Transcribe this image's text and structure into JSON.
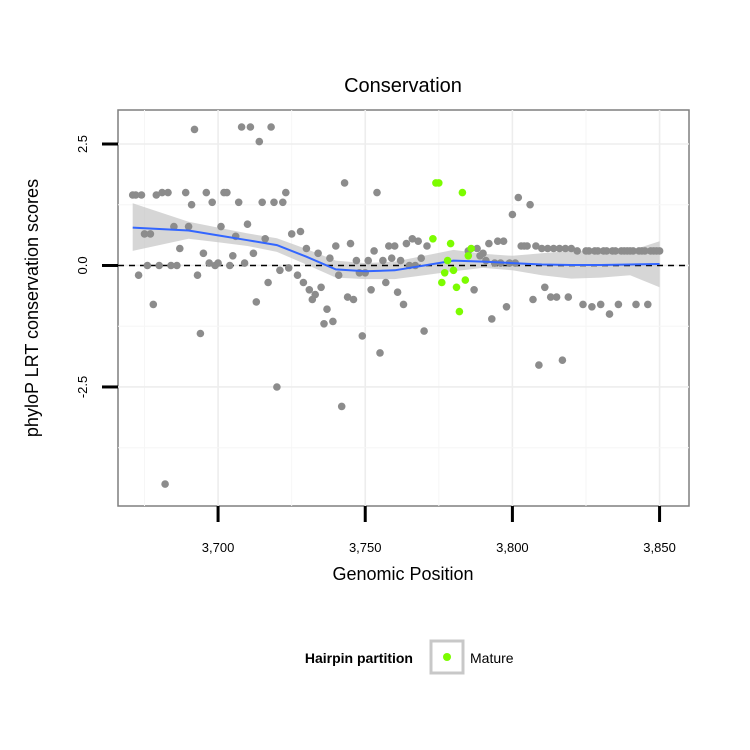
{
  "chart_data": {
    "type": "scatter",
    "title": "Conservation",
    "xlabel": "Genomic Position",
    "ylabel": "phyloP LRT conservation scores",
    "xlim": [
      3666,
      3860
    ],
    "ylim": [
      -4.95,
      3.2
    ],
    "x_ticks": [
      {
        "value": 3700,
        "label": "3,700"
      },
      {
        "value": 3750,
        "label": "3,750"
      },
      {
        "value": 3800,
        "label": "3,800"
      },
      {
        "value": 3850,
        "label": "3,850"
      }
    ],
    "y_ticks": [
      {
        "value": -2.5,
        "label": "-2.5"
      },
      {
        "value": 0.0,
        "label": "0.0"
      },
      {
        "value": 2.5,
        "label": "2.5"
      }
    ],
    "reference_line": {
      "y": 0.0,
      "style": "dashed"
    },
    "legend": {
      "title": "Hairpin partition",
      "entries": [
        {
          "label": "Mature",
          "color": "#7cfc00"
        }
      ],
      "position": "bottom"
    },
    "colors": {
      "other": "#8c8c8c",
      "mature": "#7cfc00",
      "smooth": "#3366ff",
      "band": "#c4c4c4"
    },
    "series": [
      {
        "name": "Other",
        "points": [
          [
            3671,
            1.45
          ],
          [
            3672,
            1.45
          ],
          [
            3673,
            -0.2
          ],
          [
            3674,
            1.45
          ],
          [
            3675,
            0.65
          ],
          [
            3676,
            0.0
          ],
          [
            3677,
            0.65
          ],
          [
            3678,
            -0.8
          ],
          [
            3679,
            1.45
          ],
          [
            3680,
            0.0
          ],
          [
            3681,
            1.5
          ],
          [
            3682,
            -4.5
          ],
          [
            3683,
            1.5
          ],
          [
            3684,
            0.0
          ],
          [
            3685,
            0.8
          ],
          [
            3686,
            0.0
          ],
          [
            3687,
            0.35
          ],
          [
            3689,
            1.5
          ],
          [
            3690,
            0.8
          ],
          [
            3691,
            1.25
          ],
          [
            3692,
            2.8
          ],
          [
            3693,
            -0.2
          ],
          [
            3694,
            -1.4
          ],
          [
            3695,
            0.25
          ],
          [
            3696,
            1.5
          ],
          [
            3697,
            0.05
          ],
          [
            3698,
            1.3
          ],
          [
            3699,
            0.0
          ],
          [
            3700,
            0.05
          ],
          [
            3701,
            0.8
          ],
          [
            3702,
            1.5
          ],
          [
            3703,
            1.5
          ],
          [
            3704,
            0.0
          ],
          [
            3705,
            0.2
          ],
          [
            3706,
            0.6
          ],
          [
            3707,
            1.3
          ],
          [
            3708,
            2.85
          ],
          [
            3709,
            0.05
          ],
          [
            3710,
            0.85
          ],
          [
            3711,
            2.85
          ],
          [
            3712,
            0.25
          ],
          [
            3713,
            -0.75
          ],
          [
            3714,
            2.55
          ],
          [
            3715,
            1.3
          ],
          [
            3716,
            0.55
          ],
          [
            3717,
            -0.35
          ],
          [
            3718,
            2.85
          ],
          [
            3719,
            1.3
          ],
          [
            3720,
            -2.5
          ],
          [
            3721,
            -0.1
          ],
          [
            3722,
            1.3
          ],
          [
            3723,
            1.5
          ],
          [
            3724,
            -0.05
          ],
          [
            3725,
            0.65
          ],
          [
            3727,
            -0.2
          ],
          [
            3728,
            0.7
          ],
          [
            3729,
            -0.35
          ],
          [
            3730,
            0.35
          ],
          [
            3731,
            -0.5
          ],
          [
            3732,
            -0.7
          ],
          [
            3733,
            -0.6
          ],
          [
            3734,
            0.25
          ],
          [
            3735,
            -0.45
          ],
          [
            3736,
            -1.2
          ],
          [
            3737,
            -0.9
          ],
          [
            3738,
            0.15
          ],
          [
            3739,
            -1.15
          ],
          [
            3740,
            0.4
          ],
          [
            3741,
            -0.2
          ],
          [
            3742,
            -2.9
          ],
          [
            3743,
            1.7
          ],
          [
            3744,
            -0.65
          ],
          [
            3745,
            0.45
          ],
          [
            3746,
            -0.7
          ],
          [
            3747,
            0.1
          ],
          [
            3748,
            -0.15
          ],
          [
            3749,
            -1.45
          ],
          [
            3750,
            -0.15
          ],
          [
            3751,
            0.1
          ],
          [
            3752,
            -0.5
          ],
          [
            3753,
            0.3
          ],
          [
            3754,
            1.5
          ],
          [
            3755,
            -1.8
          ],
          [
            3756,
            0.1
          ],
          [
            3757,
            -0.35
          ],
          [
            3758,
            0.4
          ],
          [
            3759,
            0.15
          ],
          [
            3760,
            0.4
          ],
          [
            3761,
            -0.55
          ],
          [
            3762,
            0.1
          ],
          [
            3763,
            -0.8
          ],
          [
            3764,
            0.45
          ],
          [
            3765,
            0.0
          ],
          [
            3766,
            0.55
          ],
          [
            3767,
            0.0
          ],
          [
            3768,
            0.5
          ],
          [
            3769,
            0.15
          ],
          [
            3770,
            -1.35
          ],
          [
            3771,
            0.4
          ],
          [
            3785,
            0.3
          ],
          [
            3787,
            -0.5
          ],
          [
            3788,
            0.35
          ],
          [
            3789,
            0.2
          ],
          [
            3790,
            0.25
          ],
          [
            3791,
            0.1
          ],
          [
            3792,
            0.45
          ],
          [
            3793,
            -1.1
          ],
          [
            3794,
            0.05
          ],
          [
            3795,
            0.5
          ],
          [
            3796,
            0.05
          ],
          [
            3797,
            0.5
          ],
          [
            3798,
            -0.85
          ],
          [
            3799,
            0.05
          ],
          [
            3800,
            1.05
          ],
          [
            3801,
            0.05
          ],
          [
            3802,
            1.4
          ],
          [
            3803,
            0.4
          ],
          [
            3804,
            0.4
          ],
          [
            3805,
            0.4
          ],
          [
            3806,
            1.25
          ],
          [
            3807,
            -0.7
          ],
          [
            3808,
            0.4
          ],
          [
            3809,
            -2.05
          ],
          [
            3810,
            0.35
          ],
          [
            3811,
            -0.45
          ],
          [
            3812,
            0.35
          ],
          [
            3813,
            -0.65
          ],
          [
            3814,
            0.35
          ],
          [
            3815,
            -0.65
          ],
          [
            3816,
            0.35
          ],
          [
            3817,
            -1.95
          ],
          [
            3818,
            0.35
          ],
          [
            3819,
            -0.65
          ],
          [
            3820,
            0.35
          ],
          [
            3822,
            0.3
          ],
          [
            3824,
            -0.8
          ],
          [
            3825,
            0.3
          ],
          [
            3826,
            0.3
          ],
          [
            3827,
            -0.85
          ],
          [
            3828,
            0.3
          ],
          [
            3829,
            0.3
          ],
          [
            3830,
            -0.8
          ],
          [
            3831,
            0.3
          ],
          [
            3832,
            0.3
          ],
          [
            3833,
            -1.0
          ],
          [
            3834,
            0.3
          ],
          [
            3835,
            0.3
          ],
          [
            3836,
            -0.8
          ],
          [
            3837,
            0.3
          ],
          [
            3838,
            0.3
          ],
          [
            3839,
            0.3
          ],
          [
            3840,
            0.3
          ],
          [
            3841,
            0.3
          ],
          [
            3842,
            -0.8
          ],
          [
            3843,
            0.3
          ],
          [
            3844,
            0.3
          ],
          [
            3845,
            0.3
          ],
          [
            3846,
            -0.8
          ],
          [
            3847,
            0.3
          ],
          [
            3848,
            0.3
          ],
          [
            3849,
            0.3
          ],
          [
            3850,
            0.3
          ]
        ]
      },
      {
        "name": "Mature",
        "points": [
          [
            3773,
            0.55
          ],
          [
            3774,
            1.7
          ],
          [
            3775,
            1.7
          ],
          [
            3776,
            -0.35
          ],
          [
            3777,
            -0.15
          ],
          [
            3778,
            0.1
          ],
          [
            3779,
            0.45
          ],
          [
            3780,
            -0.1
          ],
          [
            3781,
            -0.45
          ],
          [
            3782,
            -0.95
          ],
          [
            3783,
            1.5
          ],
          [
            3784,
            -0.3
          ],
          [
            3785,
            0.2
          ],
          [
            3786,
            0.35
          ]
        ]
      }
    ],
    "smooth": {
      "method": "loess",
      "x": [
        3671,
        3690,
        3700,
        3710,
        3720,
        3730,
        3740,
        3750,
        3760,
        3770,
        3780,
        3790,
        3800,
        3810,
        3820,
        3830,
        3840,
        3850
      ],
      "y": [
        0.78,
        0.72,
        0.62,
        0.52,
        0.42,
        0.18,
        -0.08,
        -0.12,
        -0.1,
        0.0,
        0.1,
        0.08,
        0.05,
        0.02,
        0.01,
        0.01,
        0.02,
        0.03
      ],
      "lower": [
        0.3,
        0.55,
        0.48,
        0.4,
        0.28,
        0.02,
        -0.25,
        -0.28,
        -0.28,
        -0.2,
        -0.12,
        -0.05,
        -0.1,
        -0.2,
        -0.27,
        -0.25,
        -0.2,
        -0.45
      ],
      "upper": [
        1.28,
        0.9,
        0.78,
        0.66,
        0.56,
        0.34,
        0.1,
        0.05,
        0.08,
        0.2,
        0.32,
        0.24,
        0.2,
        0.25,
        0.3,
        0.3,
        0.3,
        0.5
      ]
    }
  }
}
